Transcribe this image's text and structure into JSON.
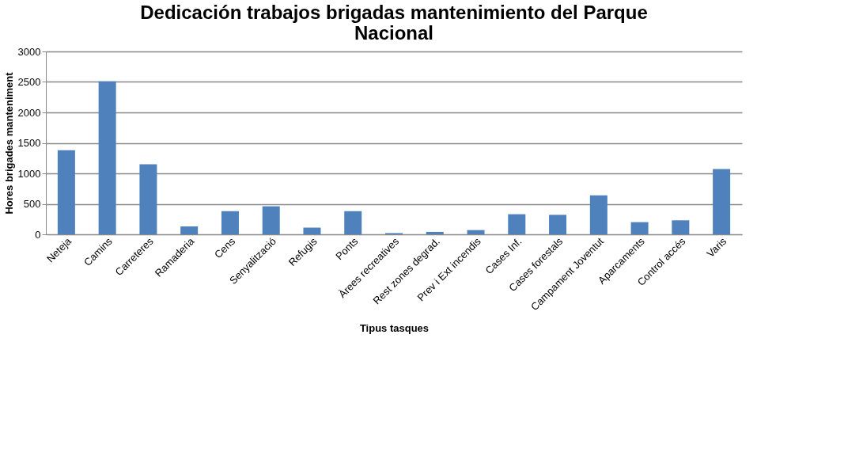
{
  "chart_data": {
    "type": "bar",
    "title": "Dedicación trabajos brigadas mantenimiento del Parque Nacional",
    "xlabel": "Tipus tasques",
    "ylabel": "Hores brigades manteniment",
    "categories": [
      "Neteja",
      "Camins",
      "Carreteres",
      "Ramaderia",
      "Cens",
      "Senyalització",
      "Refugis",
      "Ponts",
      "Àrees recreatives",
      "Rest zones degrad.",
      "Prev i Ext incendis",
      "Cases Inf.",
      "Cases forestals",
      "Campament Joventut",
      "Aparcaments",
      "Control accés",
      "Varis"
    ],
    "values": [
      1380,
      2510,
      1150,
      130,
      380,
      460,
      110,
      380,
      20,
      40,
      70,
      330,
      320,
      640,
      200,
      230,
      1070
    ],
    "color": "#4f81bd",
    "ylim": [
      0,
      3000
    ],
    "yticks": [
      0,
      500,
      1000,
      1500,
      2000,
      2500,
      3000
    ],
    "grid": "y"
  }
}
